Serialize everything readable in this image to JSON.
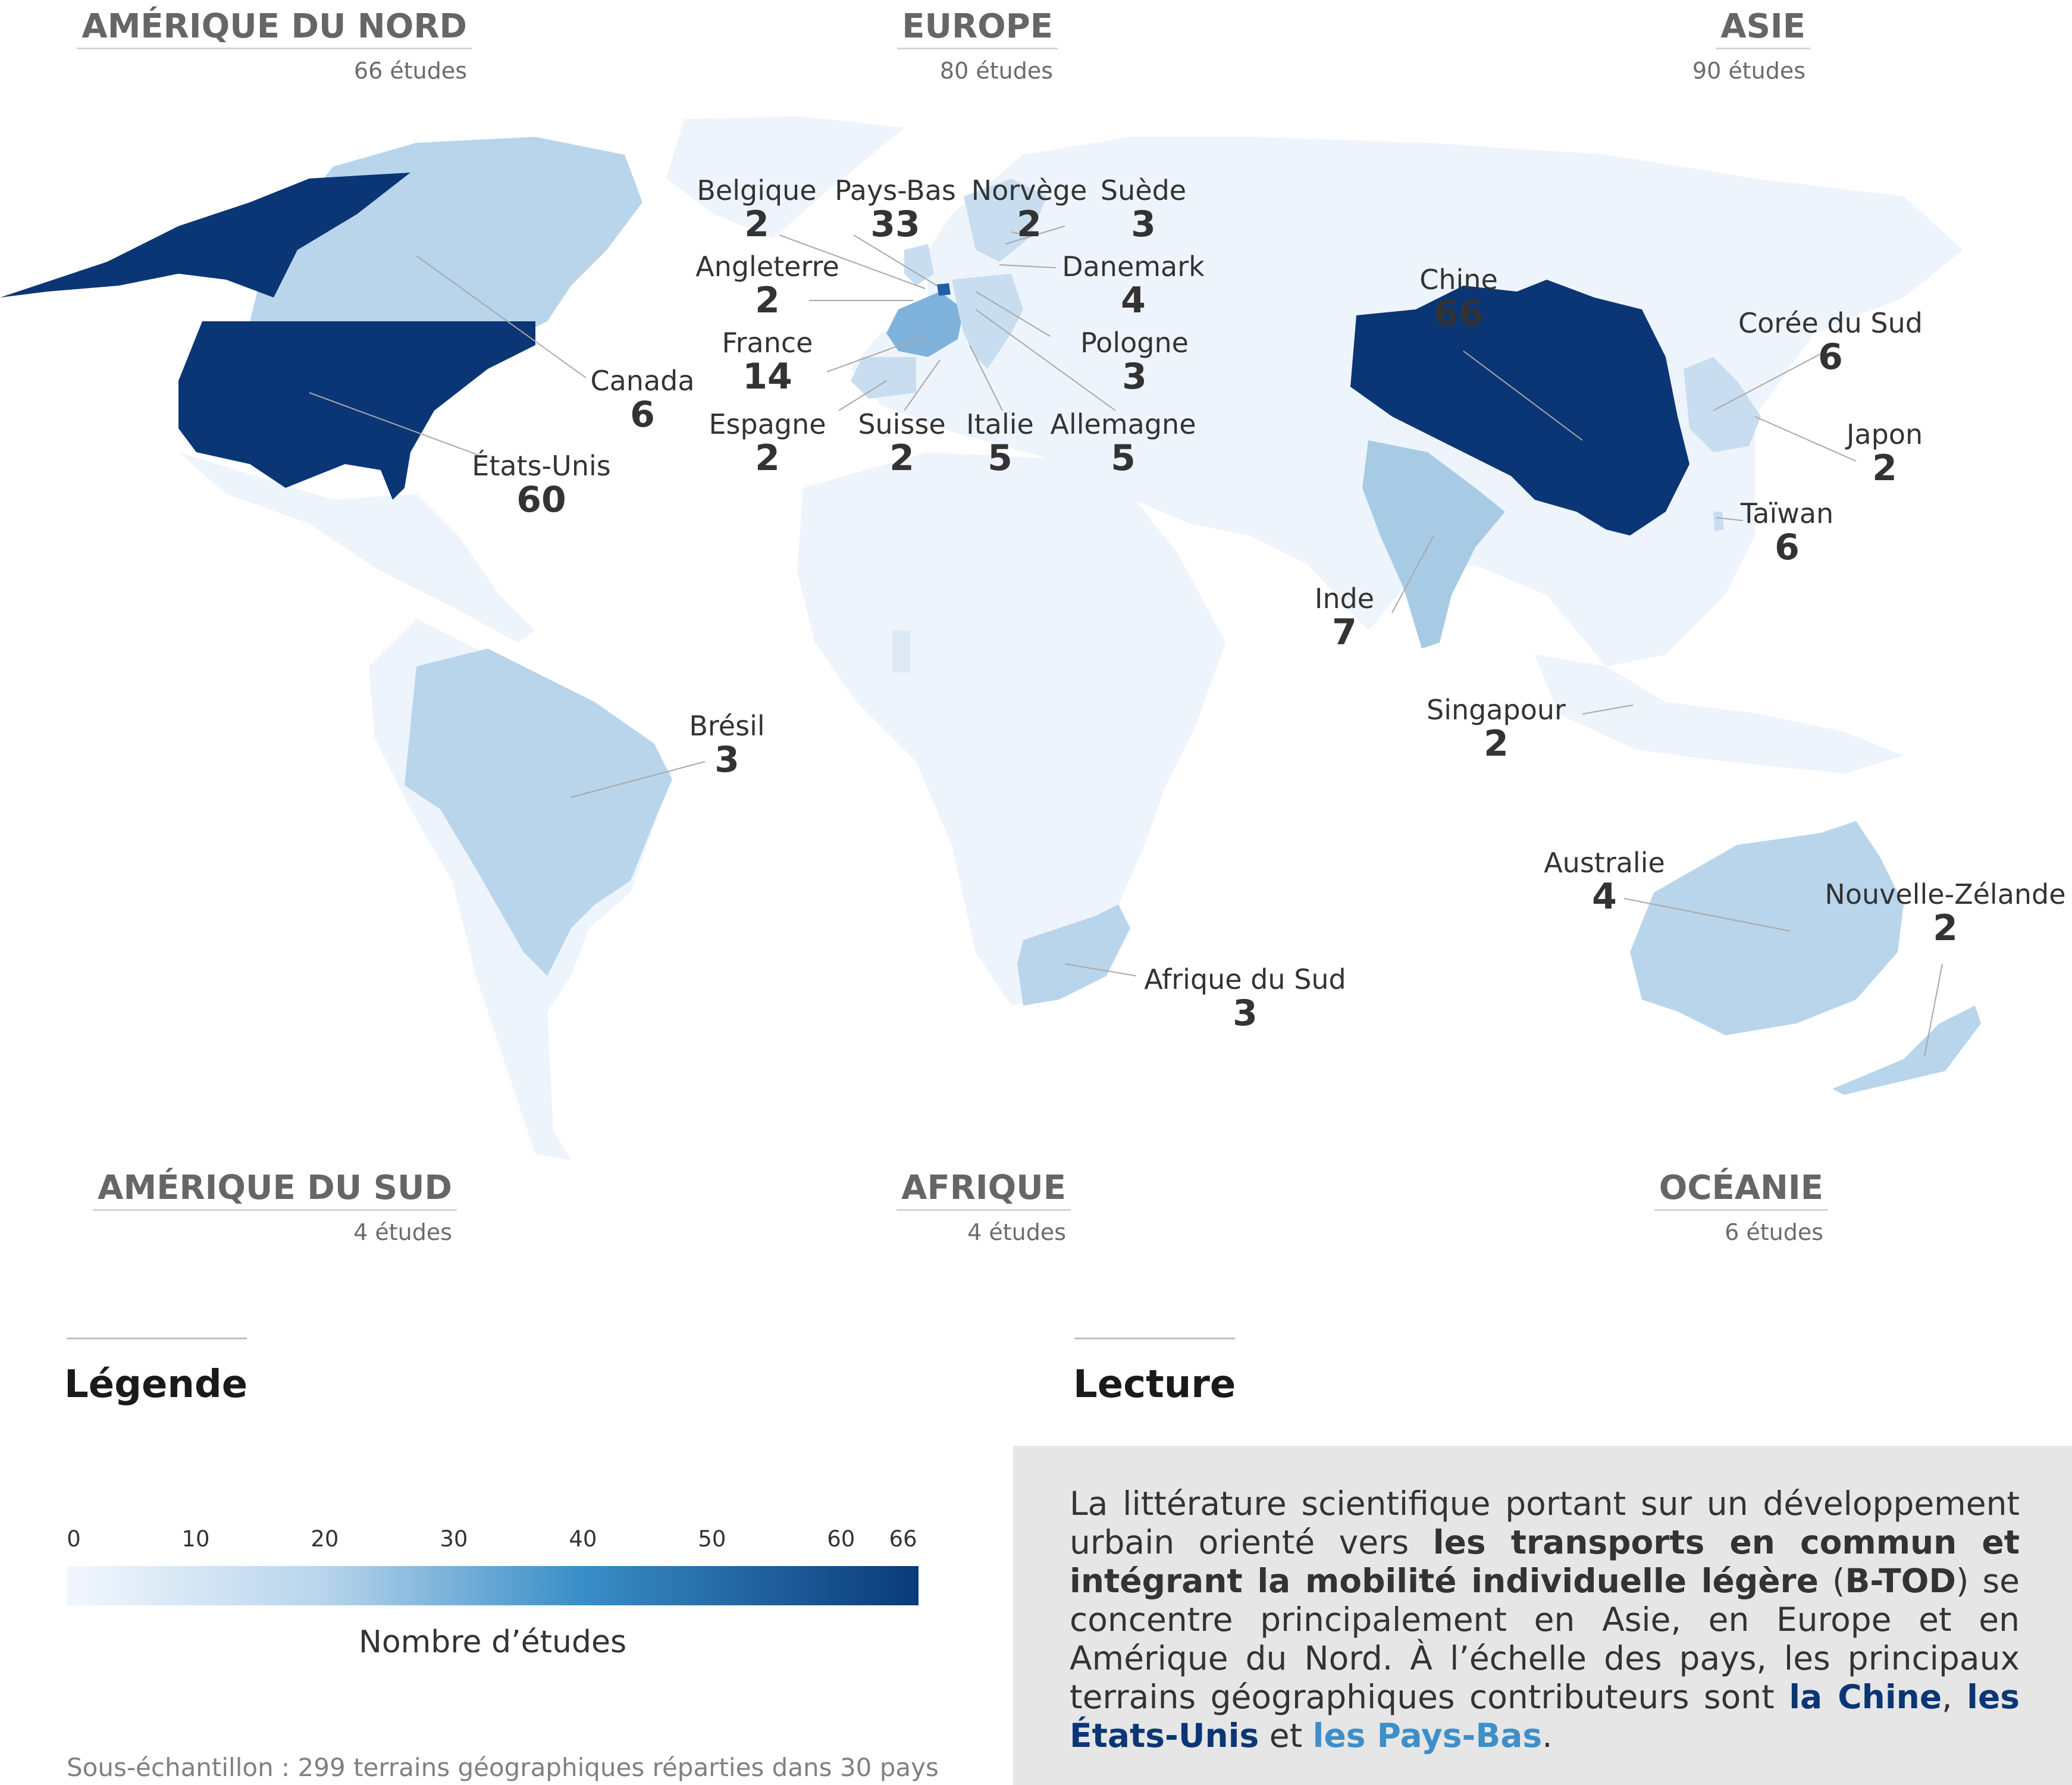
{
  "regions": [
    {
      "name": "AMÉRIQUE DU NORD",
      "count": "66 études"
    },
    {
      "name": "EUROPE",
      "count": "80 études"
    },
    {
      "name": "ASIE",
      "count": "90 études"
    },
    {
      "name": "AMÉRIQUE DU SUD",
      "count": "4 études"
    },
    {
      "name": "AFRIQUE",
      "count": "4 études"
    },
    {
      "name": "OCÉANIE",
      "count": "6 études"
    }
  ],
  "countries": [
    {
      "name": "Belgique",
      "value": 2
    },
    {
      "name": "Pays-Bas",
      "value": 33
    },
    {
      "name": "Norvège",
      "value": 2
    },
    {
      "name": "Suède",
      "value": 3
    },
    {
      "name": "Angleterre",
      "value": 2
    },
    {
      "name": "Danemark",
      "value": 4
    },
    {
      "name": "France",
      "value": 14
    },
    {
      "name": "Pologne",
      "value": 3
    },
    {
      "name": "Espagne",
      "value": 2
    },
    {
      "name": "Suisse",
      "value": 2
    },
    {
      "name": "Italie",
      "value": 5
    },
    {
      "name": "Allemagne",
      "value": 5
    },
    {
      "name": "Canada",
      "value": 6
    },
    {
      "name": "États-Unis",
      "value": 60
    },
    {
      "name": "Brésil",
      "value": 3
    },
    {
      "name": "Afrique du Sud",
      "value": 3
    },
    {
      "name": "Chine",
      "value": 66
    },
    {
      "name": "Corée du Sud",
      "value": 6
    },
    {
      "name": "Japon",
      "value": 2
    },
    {
      "name": "Taïwan",
      "value": 6
    },
    {
      "name": "Inde",
      "value": 7
    },
    {
      "name": "Singapour",
      "value": 2
    },
    {
      "name": "Australie",
      "value": 4
    },
    {
      "name": "Nouvelle-Zélande",
      "value": 2
    }
  ],
  "legend": {
    "title": "Légende",
    "ticks": [
      "0",
      "10",
      "20",
      "30",
      "40",
      "50",
      "60",
      "66"
    ],
    "tick_values": [
      0,
      10,
      20,
      30,
      40,
      50,
      60,
      66
    ],
    "min": 0,
    "max": 66,
    "colors": [
      "#f2f7fd",
      "#b8d5ec",
      "#3a8fc8",
      "#0a3a78"
    ],
    "caption": "Nombre d’études"
  },
  "footnote": "Sous-échantillon : 299 terrains géographiques réparties dans 30 pays",
  "lecture": {
    "title": "Lecture",
    "parts": [
      {
        "text": "La littérature scientifique portant sur un développement urbain orienté vers ",
        "style": "plain"
      },
      {
        "text": "les transports en commun et intégrant la mobilité individuelle légère",
        "style": "bold"
      },
      {
        "text": " (",
        "style": "plain"
      },
      {
        "text": "B-TOD",
        "style": "bold"
      },
      {
        "text": ") se concentre principalement en Asie, en Europe et en Amérique du Nord. À l’échelle des pays, les principaux terrains géographiques contributeurs sont ",
        "style": "plain"
      },
      {
        "text": "la Chine",
        "style": "dark"
      },
      {
        "text": ", ",
        "style": "plain"
      },
      {
        "text": "les États-Unis",
        "style": "dark"
      },
      {
        "text": " et ",
        "style": "plain"
      },
      {
        "text": "les Pays-Bas",
        "style": "light"
      },
      {
        "text": ".",
        "style": "plain"
      }
    ]
  },
  "colors": {
    "no_data": "#eef4fb",
    "low": "#b8d5ec",
    "mid": "#7fb2db",
    "high": "#0b3676"
  }
}
